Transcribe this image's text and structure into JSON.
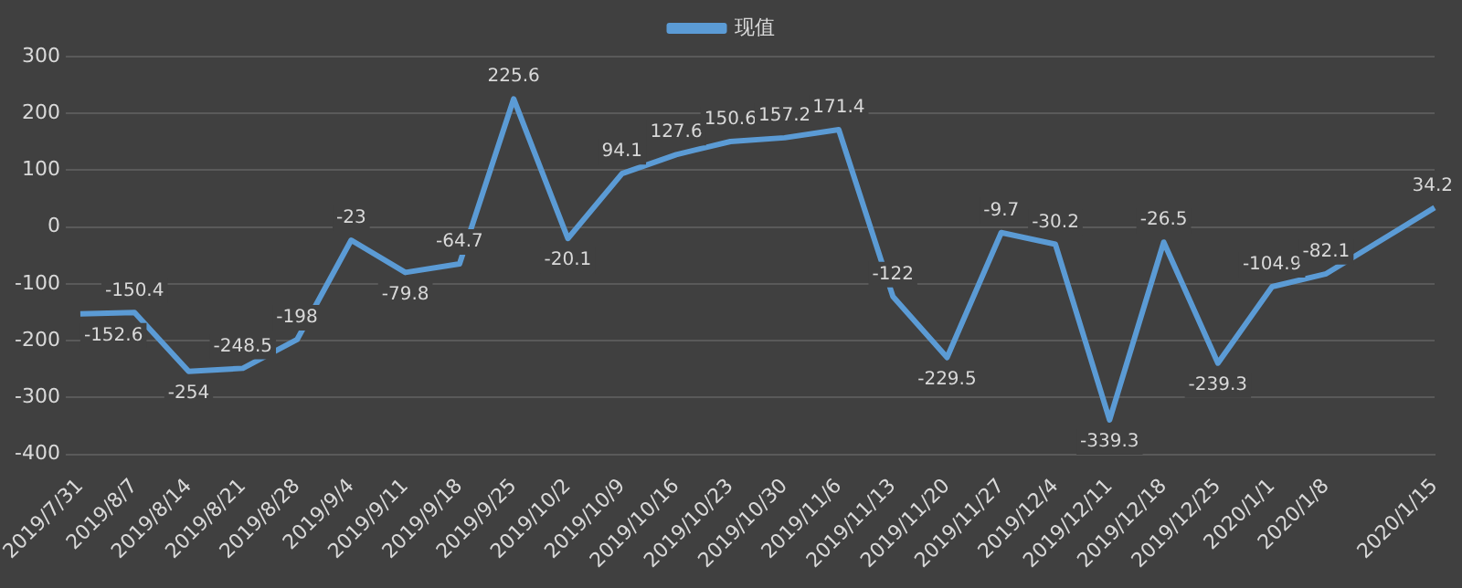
{
  "chart_data": {
    "type": "line",
    "categories": [
      "2019/7/31",
      "2019/8/7",
      "2019/8/14",
      "2019/8/21",
      "2019/8/28",
      "2019/9/4",
      "2019/9/11",
      "2019/9/18",
      "2019/9/25",
      "2019/10/2",
      "2019/10/9",
      "2019/10/16",
      "2019/10/23",
      "2019/10/30",
      "2019/11/6",
      "2019/11/13",
      "2019/11/20",
      "2019/11/27",
      "2019/12/4",
      "2019/12/11",
      "2019/12/18",
      "2019/12/25",
      "2020/1/1",
      "2020/1/8",
      null,
      "2020/1/15"
    ],
    "series": [
      {
        "name": "现值",
        "color": "#5b9bd5",
        "values": [
          -152.6,
          -150.4,
          -254,
          -248.5,
          -198,
          -23,
          -79.8,
          -64.7,
          225.6,
          -20.1,
          94.1,
          127.6,
          150.6,
          157.2,
          171.4,
          -122,
          -229.5,
          -9.7,
          -30.2,
          -339.3,
          -26.5,
          -239.3,
          -104.9,
          -82.1,
          null,
          34.2
        ]
      }
    ],
    "ylim": [
      -400,
      300
    ],
    "yticks": [
      -400,
      -300,
      -200,
      -100,
      0,
      100,
      200,
      300
    ],
    "grid": "y",
    "legend": "top",
    "marker": "none",
    "data_labels": true
  }
}
